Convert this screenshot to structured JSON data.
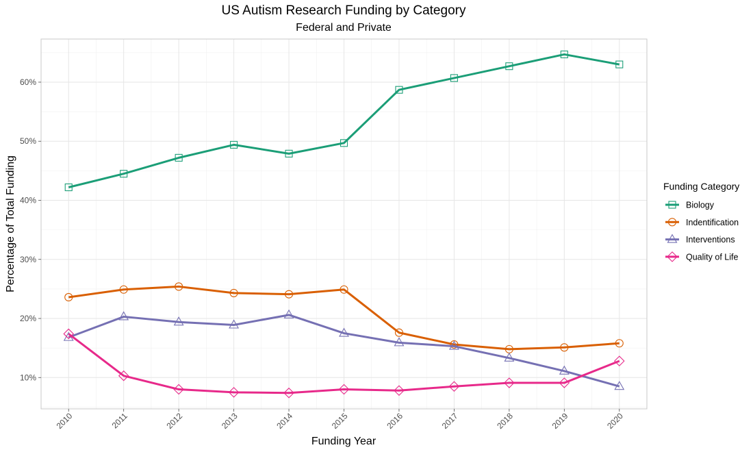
{
  "chart_data": {
    "type": "line",
    "title": "US Autism Research Funding by Category",
    "subtitle": "Federal and Private",
    "xlabel": "Funding Year",
    "ylabel": "Percentage of Total Funding",
    "x": [
      2010,
      2011,
      2012,
      2013,
      2014,
      2015,
      2016,
      2017,
      2018,
      2019,
      2020
    ],
    "x_tick_labels": [
      "2010",
      "2011",
      "2012",
      "2013",
      "2014",
      "2015",
      "2016",
      "2017",
      "2018",
      "2019",
      "2020"
    ],
    "y_ticks": [
      10,
      20,
      30,
      40,
      50,
      60
    ],
    "y_tick_labels": [
      "10%",
      "20%",
      "30%",
      "40%",
      "50%",
      "60%"
    ],
    "ylim": [
      4.7,
      67.3
    ],
    "xlim": [
      2009.5,
      2020.5
    ],
    "grid": true,
    "legend": {
      "title": "Funding Category",
      "position": "right"
    },
    "series": [
      {
        "name": "Biology",
        "color": "#1b9e77",
        "marker": "square",
        "values": [
          42.2,
          44.5,
          47.2,
          49.4,
          47.9,
          49.7,
          58.7,
          60.7,
          62.7,
          64.7,
          63.0
        ]
      },
      {
        "name": "Indentification",
        "color": "#d95f02",
        "marker": "circle",
        "values": [
          23.6,
          24.9,
          25.4,
          24.3,
          24.1,
          24.9,
          17.6,
          15.6,
          14.8,
          15.1,
          15.8
        ]
      },
      {
        "name": "Interventions",
        "color": "#7570b3",
        "marker": "triangle",
        "values": [
          16.8,
          20.3,
          19.4,
          18.9,
          20.6,
          17.5,
          15.9,
          15.3,
          13.3,
          11.1,
          8.5
        ]
      },
      {
        "name": "Quality of Life",
        "color": "#e7298a",
        "marker": "diamond",
        "values": [
          17.4,
          10.3,
          8.0,
          7.5,
          7.4,
          8.0,
          7.8,
          8.5,
          9.1,
          9.1,
          12.8
        ]
      }
    ]
  }
}
